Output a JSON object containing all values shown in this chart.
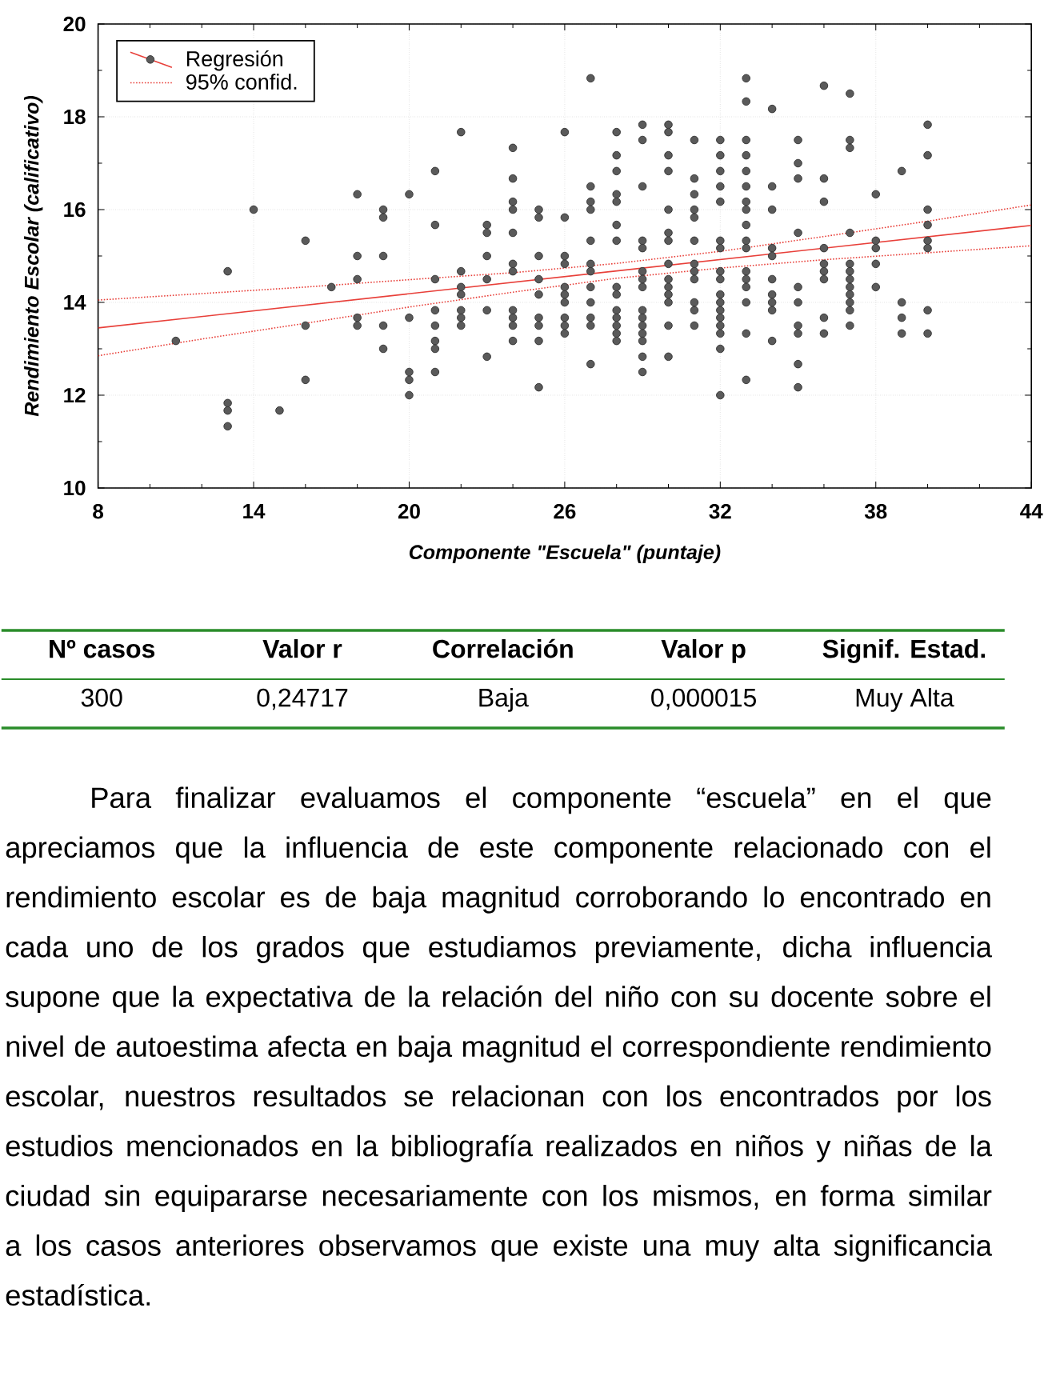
{
  "chart_data": [
    {
      "type": "scatter",
      "xlabel": "Componente \"Escuela\" (puntaje)",
      "ylabel": "Rendimiento Escolar (calificativo)",
      "xlim": [
        8,
        44
      ],
      "ylim": [
        10,
        20
      ],
      "xticks": [
        8,
        {
          "value": 10,
          "label": null
        },
        {
          "value": 12,
          "label": null
        },
        14,
        {
          "value": 16,
          "label": null
        },
        {
          "value": 18,
          "label": null
        },
        20,
        {
          "value": 22,
          "label": null
        },
        {
          "value": 24,
          "label": null
        },
        26,
        {
          "value": 28,
          "label": null
        },
        {
          "value": 30,
          "label": null
        },
        32,
        {
          "value": 34,
          "label": null
        },
        {
          "value": 36,
          "label": null
        },
        38,
        {
          "value": 40,
          "label": null
        },
        {
          "value": 42,
          "label": null
        },
        44
      ],
      "yticks": [
        10,
        {
          "value": 11,
          "label": null
        },
        12,
        {
          "value": 13,
          "label": null
        },
        14,
        {
          "value": 15,
          "label": null
        },
        16,
        {
          "value": 17,
          "label": null
        },
        18,
        {
          "value": 19,
          "label": null
        },
        20
      ],
      "grid": true,
      "legend": "top left",
      "series": [
        {
          "type": "scatter",
          "color": "#5a5a5a",
          "marker": "circle",
          "x": [
            11,
            13,
            13,
            13,
            13,
            14,
            15,
            16,
            16,
            16,
            17,
            18,
            18,
            18,
            18,
            18,
            19,
            19,
            19,
            19,
            19,
            20,
            20,
            20,
            20,
            20,
            21,
            21,
            21,
            21,
            21,
            21,
            21,
            21,
            22,
            22,
            22,
            22,
            22,
            22,
            22,
            23,
            23,
            23,
            23,
            23,
            23,
            24,
            24,
            24,
            24,
            24,
            24,
            24,
            24,
            24,
            24,
            24,
            25,
            25,
            25,
            25,
            25,
            25,
            25,
            25,
            25,
            26,
            26,
            26,
            26,
            26,
            26,
            26,
            26,
            26,
            26,
            27,
            27,
            27,
            27,
            27,
            27,
            27,
            27,
            27,
            27,
            27,
            27,
            28,
            28,
            28,
            28,
            28,
            28,
            28,
            28,
            28,
            28,
            28,
            28,
            28,
            28,
            29,
            29,
            29,
            29,
            29,
            29,
            29,
            29,
            29,
            29,
            29,
            29,
            29,
            29,
            29,
            30,
            30,
            30,
            30,
            30,
            30,
            30,
            30,
            30,
            30,
            30,
            30,
            30,
            30,
            31,
            31,
            31,
            31,
            31,
            31,
            31,
            31,
            31,
            31,
            31,
            31,
            32,
            32,
            32,
            32,
            32,
            32,
            32,
            32,
            32,
            32,
            32,
            32,
            32,
            32,
            32,
            32,
            32,
            33,
            33,
            33,
            33,
            33,
            33,
            33,
            33,
            33,
            33,
            33,
            33,
            33,
            33,
            33,
            33,
            33,
            34,
            34,
            34,
            34,
            34,
            34,
            34,
            34,
            34,
            34,
            35,
            35,
            35,
            35,
            35,
            35,
            35,
            35,
            35,
            35,
            36,
            36,
            36,
            36,
            36,
            36,
            36,
            36,
            36,
            37,
            37,
            37,
            37,
            37,
            37,
            37,
            37,
            37,
            37,
            37,
            37,
            38,
            38,
            38,
            38,
            38,
            39,
            39,
            39,
            39,
            40,
            40,
            40,
            40,
            40,
            40,
            40,
            40
          ],
          "values": [
            13.17,
            14.67,
            11.83,
            11.67,
            11.33,
            16,
            11.67,
            15.33,
            13.5,
            12.33,
            14.33,
            16.33,
            15,
            14.5,
            13.67,
            13.5,
            16,
            15.83,
            15,
            13.5,
            13,
            16.33,
            13.67,
            12.5,
            12.33,
            12,
            16.83,
            15.67,
            14.5,
            13.83,
            13.5,
            13.17,
            13,
            12.5,
            17.67,
            14.67,
            14.33,
            14.17,
            13.83,
            13.67,
            13.5,
            15.67,
            15.5,
            15,
            14.5,
            13.83,
            12.83,
            17.33,
            16.67,
            16.17,
            16,
            15.5,
            14.83,
            14.67,
            13.83,
            13.67,
            13.5,
            13.17,
            16,
            15.83,
            15,
            14.5,
            14.17,
            13.67,
            13.5,
            13.17,
            12.17,
            17.67,
            15.83,
            15,
            14.83,
            14.33,
            14.17,
            14,
            13.67,
            13.5,
            13.33,
            18.83,
            16.5,
            16.17,
            16,
            15.33,
            14.83,
            14.67,
            14.33,
            14,
            13.67,
            13.5,
            12.67,
            17.67,
            17.17,
            16.83,
            16.33,
            16.17,
            15.67,
            15.33,
            14.33,
            14.17,
            13.83,
            13.67,
            13.5,
            13.33,
            13.17,
            17.83,
            17.5,
            16.5,
            15.33,
            15.17,
            14.67,
            14.5,
            14.33,
            13.83,
            13.67,
            13.5,
            13.33,
            13.17,
            12.83,
            12.5,
            17.83,
            17.67,
            17.17,
            16.83,
            16,
            15.5,
            15.33,
            14.83,
            14.5,
            14.33,
            14.17,
            14,
            13.5,
            12.83,
            17.5,
            16.67,
            16.33,
            16,
            15.83,
            15.33,
            14.83,
            14.67,
            14.5,
            14,
            13.83,
            13.5,
            17.5,
            17.17,
            16.83,
            16.5,
            16.17,
            15.33,
            15.17,
            14.67,
            14.5,
            14.17,
            14,
            13.83,
            13.67,
            13.5,
            13.33,
            13,
            12,
            18.83,
            18.33,
            17.5,
            17.17,
            16.83,
            16.5,
            16.17,
            16,
            15.67,
            15.33,
            15.17,
            14.67,
            14.5,
            14.33,
            14,
            13.33,
            12.33,
            18.17,
            16.5,
            16,
            15.17,
            15,
            14.5,
            14.17,
            14,
            13.83,
            13.17,
            17.5,
            17,
            16.67,
            15.5,
            14.33,
            14,
            13.5,
            13.33,
            12.67,
            12.17,
            18.67,
            16.67,
            16.17,
            15.17,
            14.83,
            14.67,
            14.5,
            13.67,
            13.33,
            18.5,
            17.5,
            17.33,
            15.5,
            14.83,
            14.67,
            14.5,
            14.33,
            14.17,
            14,
            13.83,
            13.5,
            16.33,
            15.33,
            15.17,
            14.83,
            14.33,
            16.83,
            14,
            13.67,
            13.33,
            17.83,
            17.17,
            16,
            15.67,
            15.33,
            15.17,
            13.83,
            13.33
          ]
        },
        {
          "type": "line",
          "name": "Regresión",
          "color": "#e8403a",
          "line_style": "solid",
          "x": [
            8,
            44
          ],
          "values": [
            13.45,
            15.66
          ]
        },
        {
          "type": "line",
          "name": "95% confid.",
          "color": "#e8403a",
          "line_style": "dotted",
          "x": [
            8,
            12,
            16,
            20,
            24,
            28,
            32,
            36,
            40,
            44
          ],
          "values": [
            14.05,
            14.19,
            14.33,
            14.49,
            14.64,
            14.84,
            15.1,
            15.42,
            15.75,
            16.1
          ]
        },
        {
          "type": "line",
          "color": "#e8403a",
          "line_style": "dotted",
          "x": [
            8,
            12,
            16,
            20,
            24,
            28,
            32,
            36,
            40,
            44
          ],
          "values": [
            12.85,
            13.21,
            13.55,
            13.9,
            14.22,
            14.52,
            14.74,
            14.92,
            15.07,
            15.22
          ]
        }
      ]
    },
    {
      "type": "other",
      "categories": [
        "Nº casos",
        "Valor r",
        "Correlación",
        "Valor p",
        "Signif. Estad."
      ],
      "cell_labels": [
        [
          "300",
          "0,24717",
          "Baja",
          "0,000015",
          "Muy Alta"
        ]
      ],
      "color": "#2a8c2a",
      "annotations": [
        "Para finalizar evaluamos el componente “escuela” en el que apreciamos que la influencia de este componente relacionado con el rendimiento escolar es de baja magnitud corroborando lo encontrado en cada uno de los grados que estudiamos previamente, dicha influencia supone que la expectativa de la relación del niño con su docente sobre el nivel de autoestima afecta en baja magnitud el correspondiente rendimiento escolar, nuestros resultados se relacionan con los encontrados por los estudios mencionados en la bibliografía realizados en niños y niñas de la ciudad sin equipararse necesariamente con los mismos, en forma similar a los casos anteriores observamos que existe una muy alta significancia estadística."
      ]
    }
  ]
}
